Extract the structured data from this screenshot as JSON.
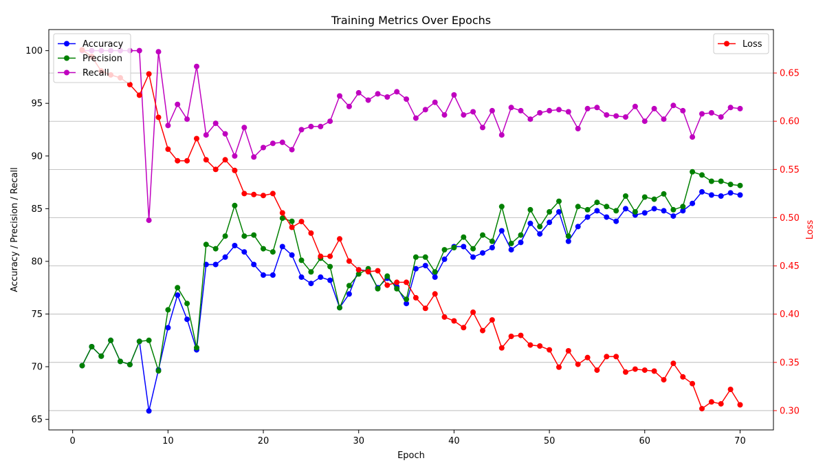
{
  "chart_data": {
    "type": "line",
    "title": "Training Metrics Over Epochs",
    "xlabel": "Epoch",
    "ylabel_left": "Accuracy / Precision / Recall",
    "ylabel_right": "Loss",
    "xlim": [
      -2.5,
      73.5
    ],
    "ylim_left": [
      64.0,
      102.0
    ],
    "ylim_right": [
      0.28,
      0.695
    ],
    "x_ticks": [
      0,
      10,
      20,
      30,
      40,
      50,
      60,
      70
    ],
    "y_ticks_left": [
      65,
      70,
      75,
      80,
      85,
      90,
      95,
      100
    ],
    "y_ticks_right": [
      0.3,
      0.35,
      0.4,
      0.45,
      0.5,
      0.55,
      0.6,
      0.65
    ],
    "y_ticks_right_labels": [
      "0.30",
      "0.35",
      "0.40",
      "0.45",
      "0.50",
      "0.55",
      "0.60",
      "0.65"
    ],
    "grid": "horizontal (right axis)",
    "legend_left_placement": "upper left",
    "legend_right_placement": "upper right",
    "right_axis_color": "#ff0000",
    "x": [
      1,
      2,
      3,
      4,
      5,
      6,
      7,
      8,
      9,
      10,
      11,
      12,
      13,
      14,
      15,
      16,
      17,
      18,
      19,
      20,
      21,
      22,
      23,
      24,
      25,
      26,
      27,
      28,
      29,
      30,
      31,
      32,
      33,
      34,
      35,
      36,
      37,
      38,
      39,
      40,
      41,
      42,
      43,
      44,
      45,
      46,
      47,
      48,
      49,
      50,
      51,
      52,
      53,
      54,
      55,
      56,
      57,
      58,
      59,
      60,
      61,
      62,
      63,
      64,
      65,
      66,
      67,
      68,
      69,
      70
    ],
    "series": [
      {
        "name": "Accuracy",
        "axis": "left",
        "color": "#0000ff",
        "values": [
          70.1,
          71.9,
          71.0,
          72.5,
          70.5,
          70.2,
          72.4,
          65.8,
          69.7,
          73.7,
          76.8,
          74.5,
          71.6,
          79.7,
          79.7,
          80.4,
          81.5,
          80.9,
          79.7,
          78.7,
          78.7,
          81.4,
          80.6,
          78.5,
          77.9,
          78.5,
          78.2,
          75.6,
          76.9,
          79.2,
          79.1,
          77.5,
          78.4,
          77.6,
          76.0,
          79.3,
          79.6,
          78.5,
          80.2,
          81.4,
          81.4,
          80.4,
          80.8,
          81.3,
          82.9,
          81.1,
          81.8,
          83.6,
          82.6,
          83.7,
          84.7,
          81.9,
          83.3,
          84.2,
          84.8,
          84.2,
          83.8,
          85.0,
          84.4,
          84.6,
          85.0,
          84.8,
          84.3,
          84.8,
          85.5,
          86.6,
          86.3,
          86.2,
          86.5,
          86.3
        ]
      },
      {
        "name": "Precision",
        "axis": "left",
        "color": "#008000",
        "values": [
          70.1,
          71.9,
          71.0,
          72.5,
          70.5,
          70.2,
          72.4,
          72.5,
          69.6,
          75.4,
          77.5,
          76.0,
          71.8,
          81.6,
          81.2,
          82.4,
          85.3,
          82.4,
          82.5,
          81.2,
          80.9,
          84.1,
          83.8,
          80.1,
          79.0,
          80.3,
          79.5,
          75.6,
          77.7,
          78.8,
          79.3,
          77.4,
          78.6,
          77.4,
          76.4,
          80.4,
          80.4,
          79.0,
          81.1,
          81.3,
          82.3,
          81.2,
          82.5,
          81.9,
          85.2,
          81.7,
          82.5,
          84.9,
          83.3,
          84.7,
          85.7,
          82.4,
          85.2,
          84.9,
          85.6,
          85.2,
          84.8,
          86.2,
          84.7,
          86.1,
          85.9,
          86.4,
          84.9,
          85.2,
          88.5,
          88.2,
          87.6,
          87.6,
          87.3,
          87.2
        ]
      },
      {
        "name": "Recall",
        "axis": "left",
        "color": "#bf00bf",
        "values": [
          100.0,
          100.0,
          100.0,
          100.0,
          100.0,
          100.0,
          100.0,
          83.9,
          99.9,
          92.9,
          94.9,
          93.5,
          98.5,
          92.0,
          93.1,
          92.1,
          90.0,
          92.7,
          89.9,
          90.8,
          91.2,
          91.3,
          90.6,
          92.5,
          92.8,
          92.8,
          93.3,
          95.7,
          94.7,
          96.0,
          95.3,
          95.9,
          95.6,
          96.1,
          95.4,
          93.6,
          94.4,
          95.1,
          93.9,
          95.8,
          93.9,
          94.2,
          92.7,
          94.3,
          92.0,
          94.6,
          94.3,
          93.5,
          94.1,
          94.3,
          94.4,
          94.2,
          92.6,
          94.5,
          94.6,
          93.9,
          93.8,
          93.7,
          94.7,
          93.3,
          94.5,
          93.5,
          94.8,
          94.3,
          91.8,
          94.0,
          94.1,
          93.7,
          94.6,
          94.5
        ]
      },
      {
        "name": "Loss",
        "axis": "right",
        "color": "#ff0000",
        "values": [
          0.674,
          0.667,
          0.652,
          0.648,
          0.645,
          0.638,
          0.627,
          0.649,
          0.604,
          0.571,
          0.559,
          0.559,
          0.582,
          0.56,
          0.55,
          0.56,
          0.549,
          0.525,
          0.524,
          0.523,
          0.525,
          0.505,
          0.49,
          0.496,
          0.484,
          0.46,
          0.46,
          0.478,
          0.455,
          0.446,
          0.444,
          0.445,
          0.43,
          0.433,
          0.433,
          0.417,
          0.406,
          0.421,
          0.397,
          0.393,
          0.386,
          0.402,
          0.383,
          0.394,
          0.365,
          0.377,
          0.378,
          0.368,
          0.367,
          0.363,
          0.345,
          0.362,
          0.348,
          0.355,
          0.342,
          0.356,
          0.356,
          0.34,
          0.343,
          0.342,
          0.341,
          0.332,
          0.349,
          0.335,
          0.328,
          0.302,
          0.309,
          0.307,
          0.322,
          0.306
        ]
      }
    ]
  }
}
